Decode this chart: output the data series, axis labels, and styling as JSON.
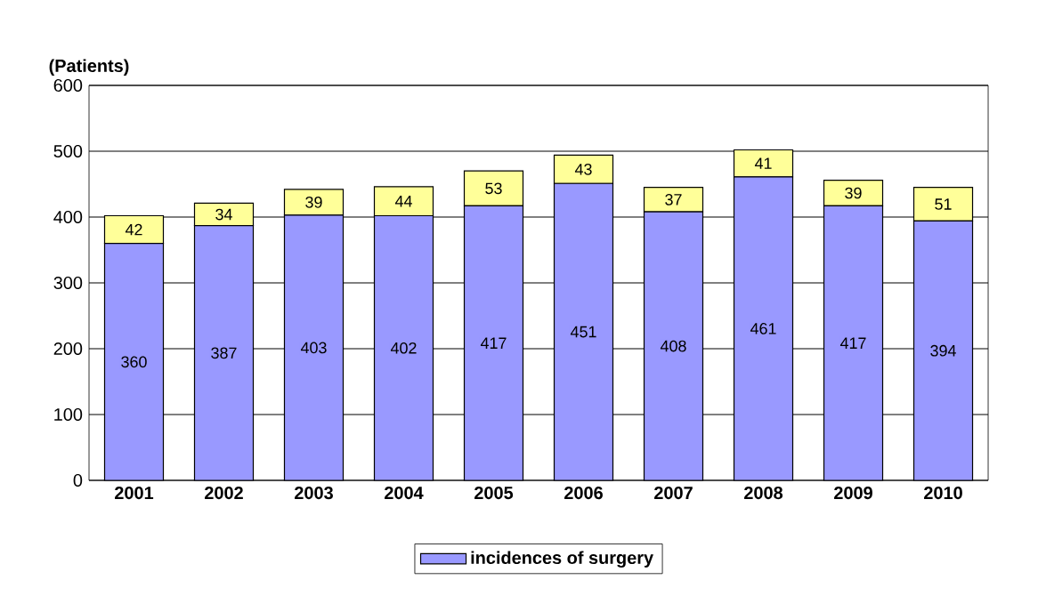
{
  "chart_data": {
    "type": "bar",
    "stacked": true,
    "ylabel": "(Patients)",
    "categories": [
      "2001",
      "2002",
      "2003",
      "2004",
      "2005",
      "2006",
      "2007",
      "2008",
      "2009",
      "2010"
    ],
    "series": [
      {
        "name": "incidences of surgery",
        "color": "#9999ff",
        "values": [
          360,
          387,
          403,
          402,
          417,
          451,
          408,
          461,
          417,
          394
        ]
      },
      {
        "color": "#ffff99",
        "values": [
          42,
          34,
          39,
          44,
          53,
          43,
          37,
          41,
          39,
          51
        ]
      }
    ],
    "ylim": [
      0,
      600
    ],
    "yticks": [
      0,
      100,
      200,
      300,
      400,
      500,
      600
    ],
    "grid": "y",
    "legend": "bottom",
    "data_labels": true
  }
}
